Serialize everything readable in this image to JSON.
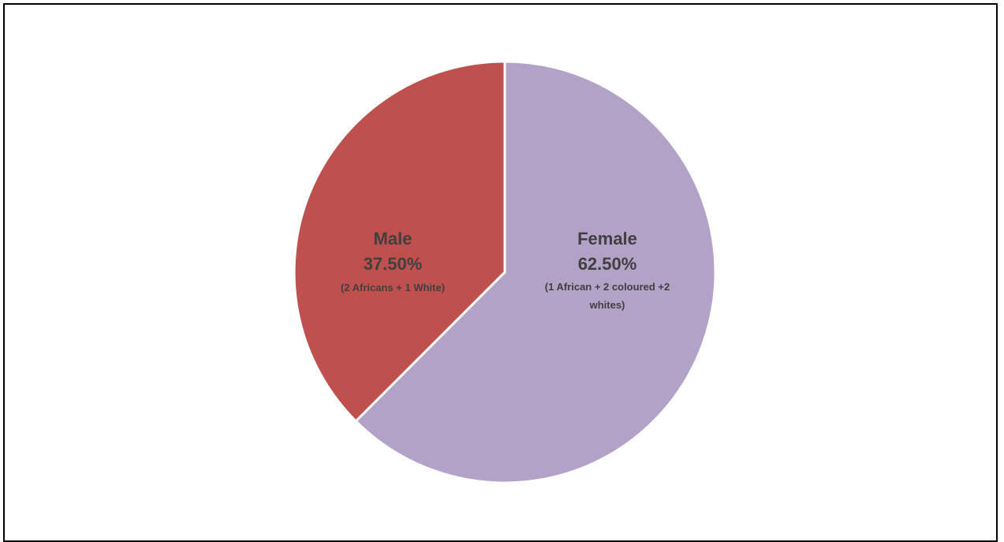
{
  "chart_data": {
    "type": "pie",
    "slices": [
      {
        "label": "Female",
        "value": 62.5,
        "value_label": "62.50%",
        "note_lines": [
          "(1 African + 2 coloured +2",
          "whites)"
        ],
        "color": "#B3A2C7"
      },
      {
        "label": "Male",
        "value": 37.5,
        "value_label": "37.50%",
        "note_lines": [
          "(2 Africans + 1 White)"
        ],
        "color": "#C0504D"
      }
    ],
    "label_color": "#404040",
    "legend": "none"
  }
}
